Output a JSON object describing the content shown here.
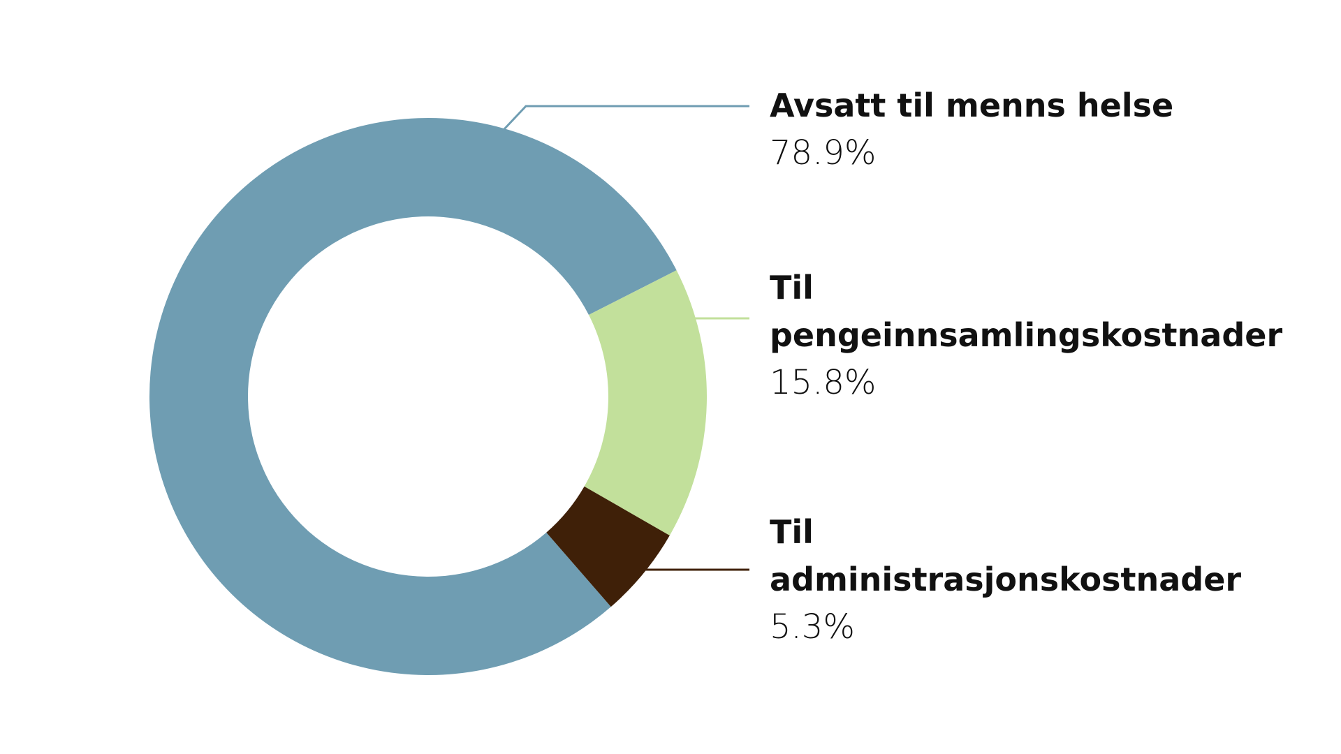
{
  "chart_data": {
    "type": "donut",
    "categories": [
      "Avsatt til menns helse",
      "Til pengeinnsamlingskostnader",
      "Til administrasjonskostnader"
    ],
    "values": [
      78.9,
      15.8,
      5.3
    ],
    "value_labels": [
      "78.9%",
      "15.8%",
      "5.3%"
    ],
    "colors": [
      "#6f9db2",
      "#c2e09b",
      "#3f2008"
    ]
  }
}
